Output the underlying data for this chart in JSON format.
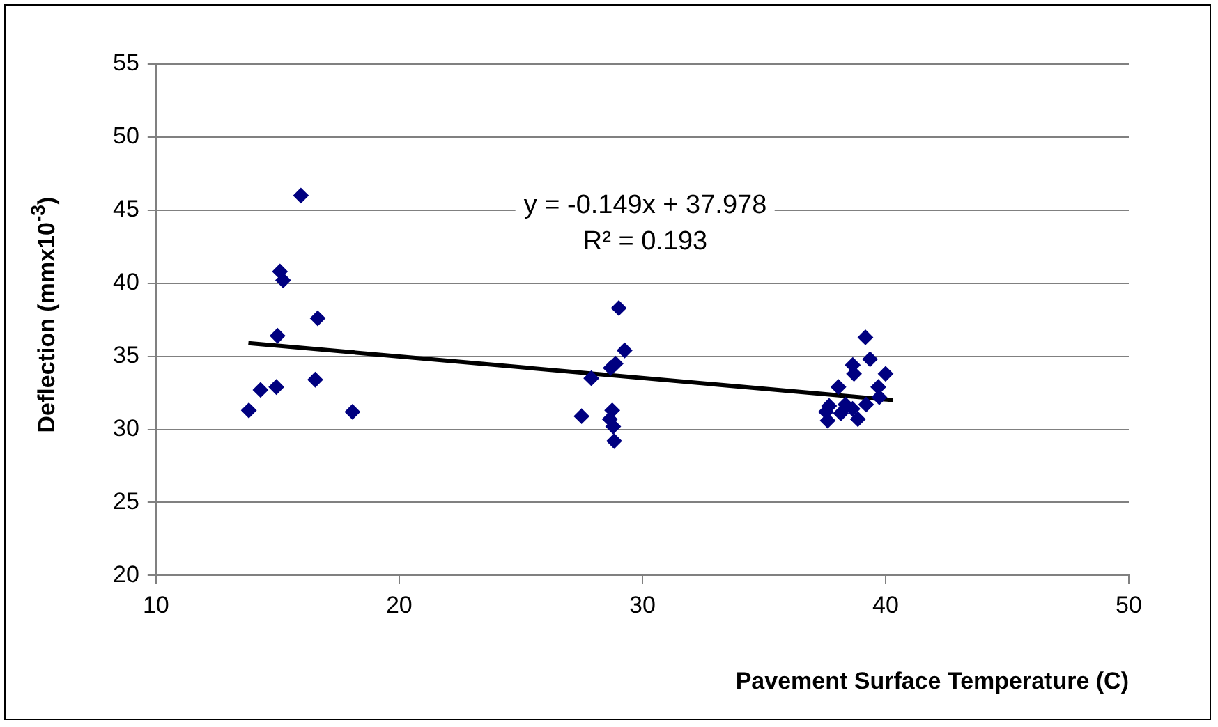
{
  "chart_data": {
    "type": "scatter",
    "xlabel": "Pavement Surface Temperature (C)",
    "ylabel": "Deflection (mmx10$^{-3}$)",
    "xlim": [
      10,
      50
    ],
    "xticks": [
      10,
      20,
      30,
      40,
      50
    ],
    "ylim": [
      20,
      55
    ],
    "yticks": [
      20,
      25,
      30,
      35,
      40,
      45,
      50,
      55
    ],
    "grid": "y",
    "legend": false,
    "marker": "diamond",
    "annotations": [
      "y = -0.149x + 37.978",
      "R² = 0.193"
    ],
    "series": [
      {
        "color": "#000080",
        "x": [
          15.96,
          15.1,
          15.23,
          16.65,
          15.0,
          14.3,
          14.95,
          16.55,
          13.82,
          18.08,
          29.03,
          29.27,
          28.9,
          28.7,
          27.9,
          27.5,
          28.76,
          28.66,
          28.8,
          28.84,
          39.17,
          39.36,
          38.65,
          38.7,
          40.0,
          39.7,
          38.06,
          39.74,
          39.2,
          37.68,
          38.35,
          37.55,
          38.16,
          38.64,
          37.62,
          38.86
        ],
        "values": [
          46.0,
          40.8,
          40.2,
          37.6,
          36.4,
          32.7,
          32.9,
          33.4,
          31.3,
          31.2,
          38.3,
          35.4,
          34.5,
          34.2,
          33.5,
          30.9,
          31.3,
          30.7,
          30.2,
          29.2,
          36.3,
          34.8,
          34.4,
          33.8,
          33.8,
          32.9,
          32.9,
          32.2,
          31.7,
          31.6,
          31.7,
          31.2,
          31.1,
          31.4,
          30.6,
          30.7
        ]
      },
      {
        "type": "line",
        "color": "#000000",
        "x": [
          13.8,
          40.3
        ],
        "values": [
          35.9,
          32.0
        ],
        "marker": "none"
      }
    ]
  }
}
